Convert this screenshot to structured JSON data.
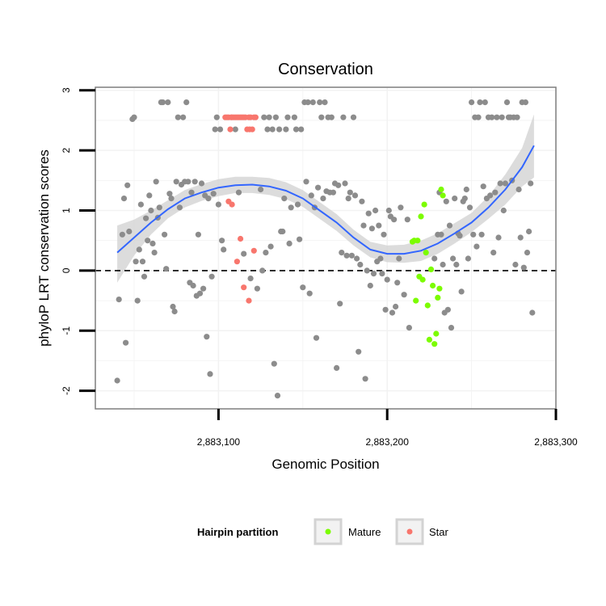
{
  "chart_data": {
    "type": "scatter",
    "title": "Conservation",
    "xlabel": "Genomic Position",
    "ylabel": "phyloP LRT conservation scores",
    "xlim": [
      2883027,
      2883300
    ],
    "ylim": [
      -2.3,
      3.05
    ],
    "x_ticks": [
      2883100,
      2883200,
      2883300
    ],
    "x_tick_labels": [
      "2,883,100",
      "2,883,200",
      "2,883,300"
    ],
    "y_ticks": [
      -2,
      -1,
      0,
      1,
      2,
      3
    ],
    "y_tick_labels": [
      "-2",
      "-1",
      "0",
      "1",
      "2",
      "3"
    ],
    "reference_line": {
      "y": 0,
      "style": "dashed"
    },
    "legend": {
      "title": "Hairpin partition",
      "position": "bottom",
      "entries": [
        {
          "label": "Mature",
          "color": "#7CFC00"
        },
        {
          "label": "Star",
          "color": "#F8766D"
        }
      ]
    },
    "colors": {
      "other": "#8C8C8C",
      "mature": "#7CFC00",
      "star": "#F8766D",
      "smooth_line": "#3366FF",
      "ribbon": "#D3D3D3",
      "grid": "#F2F2F2",
      "panel_border": "#7F7F7F"
    },
    "series": [
      {
        "name": "Other",
        "points": [
          [
            2883040,
            -1.83
          ],
          [
            2883041,
            -0.48
          ],
          [
            2883043,
            0.6
          ],
          [
            2883044,
            1.2
          ],
          [
            2883045,
            -1.2
          ],
          [
            2883046,
            1.42
          ],
          [
            2883047,
            0.65
          ],
          [
            2883049,
            2.52
          ],
          [
            2883050,
            2.55
          ],
          [
            2883051,
            0.15
          ],
          [
            2883052,
            -0.5
          ],
          [
            2883053,
            0.35
          ],
          [
            2883054,
            1.1
          ],
          [
            2883055,
            0.15
          ],
          [
            2883056,
            -0.1
          ],
          [
            2883057,
            0.87
          ],
          [
            2883058,
            0.5
          ],
          [
            2883059,
            1.25
          ],
          [
            2883060,
            1.0
          ],
          [
            2883061,
            0.45
          ],
          [
            2883062,
            0.3
          ],
          [
            2883063,
            1.48
          ],
          [
            2883064,
            0.88
          ],
          [
            2883065,
            1.05
          ],
          [
            2883066,
            2.8
          ],
          [
            2883067,
            2.8
          ],
          [
            2883068,
            0.6
          ],
          [
            2883069,
            0.03
          ],
          [
            2883070,
            2.8
          ],
          [
            2883071,
            1.28
          ],
          [
            2883072,
            1.2
          ],
          [
            2883073,
            -0.6
          ],
          [
            2883074,
            -0.68
          ],
          [
            2883075,
            1.48
          ],
          [
            2883076,
            2.55
          ],
          [
            2883077,
            1.05
          ],
          [
            2883078,
            1.43
          ],
          [
            2883079,
            2.55
          ],
          [
            2883080,
            1.48
          ],
          [
            2883081,
            2.8
          ],
          [
            2883082,
            1.48
          ],
          [
            2883083,
            -0.2
          ],
          [
            2883084,
            1.3
          ],
          [
            2883085,
            -0.25
          ],
          [
            2883086,
            1.48
          ],
          [
            2883087,
            -0.42
          ],
          [
            2883088,
            0.6
          ],
          [
            2883089,
            -0.38
          ],
          [
            2883090,
            1.45
          ],
          [
            2883091,
            -0.3
          ],
          [
            2883092,
            1.25
          ],
          [
            2883093,
            -1.1
          ],
          [
            2883094,
            1.2
          ],
          [
            2883095,
            -1.72
          ],
          [
            2883096,
            -0.1
          ],
          [
            2883097,
            1.28
          ],
          [
            2883098,
            2.35
          ],
          [
            2883099,
            2.55
          ],
          [
            2883100,
            1.1
          ],
          [
            2883101,
            2.35
          ],
          [
            2883102,
            0.5
          ],
          [
            2883103,
            0.35
          ],
          [
            2883110,
            2.35
          ],
          [
            2883112,
            1.3
          ],
          [
            2883115,
            0.28
          ],
          [
            2883119,
            -0.13
          ],
          [
            2883123,
            -0.3
          ],
          [
            2883125,
            1.35
          ],
          [
            2883126,
            0.0
          ],
          [
            2883127,
            2.55
          ],
          [
            2883128,
            0.3
          ],
          [
            2883129,
            2.35
          ],
          [
            2883130,
            2.55
          ],
          [
            2883131,
            0.4
          ],
          [
            2883132,
            2.35
          ],
          [
            2883133,
            -1.55
          ],
          [
            2883134,
            2.55
          ],
          [
            2883135,
            -2.08
          ],
          [
            2883136,
            2.35
          ],
          [
            2883137,
            0.65
          ],
          [
            2883138,
            0.65
          ],
          [
            2883139,
            1.2
          ],
          [
            2883140,
            2.35
          ],
          [
            2883141,
            2.55
          ],
          [
            2883142,
            0.45
          ],
          [
            2883143,
            1.05
          ],
          [
            2883145,
            2.55
          ],
          [
            2883146,
            2.35
          ],
          [
            2883147,
            1.1
          ],
          [
            2883148,
            0.52
          ],
          [
            2883149,
            2.35
          ],
          [
            2883150,
            -0.28
          ],
          [
            2883151,
            2.8
          ],
          [
            2883152,
            1.48
          ],
          [
            2883153,
            2.8
          ],
          [
            2883154,
            -0.38
          ],
          [
            2883155,
            1.25
          ],
          [
            2883156,
            2.8
          ],
          [
            2883157,
            1.05
          ],
          [
            2883158,
            -1.12
          ],
          [
            2883159,
            1.38
          ],
          [
            2883160,
            2.8
          ],
          [
            2883161,
            2.55
          ],
          [
            2883162,
            1.2
          ],
          [
            2883163,
            2.8
          ],
          [
            2883164,
            1.32
          ],
          [
            2883165,
            2.55
          ],
          [
            2883166,
            1.3
          ],
          [
            2883167,
            2.55
          ],
          [
            2883168,
            1.3
          ],
          [
            2883169,
            1.45
          ],
          [
            2883170,
            -1.62
          ],
          [
            2883171,
            1.42
          ],
          [
            2883172,
            -0.55
          ],
          [
            2883173,
            0.3
          ],
          [
            2883174,
            2.55
          ],
          [
            2883175,
            1.45
          ],
          [
            2883176,
            0.25
          ],
          [
            2883177,
            1.2
          ],
          [
            2883178,
            1.3
          ],
          [
            2883179,
            0.25
          ],
          [
            2883180,
            2.55
          ],
          [
            2883181,
            1.25
          ],
          [
            2883182,
            0.2
          ],
          [
            2883183,
            -1.35
          ],
          [
            2883184,
            0.1
          ],
          [
            2883185,
            1.15
          ],
          [
            2883186,
            0.75
          ],
          [
            2883187,
            -1.8
          ],
          [
            2883188,
            0.0
          ],
          [
            2883189,
            0.95
          ],
          [
            2883190,
            -0.25
          ],
          [
            2883191,
            0.7
          ],
          [
            2883192,
            -0.05
          ],
          [
            2883193,
            1.0
          ],
          [
            2883194,
            0.15
          ],
          [
            2883195,
            0.75
          ],
          [
            2883196,
            0.2
          ],
          [
            2883197,
            -0.05
          ],
          [
            2883198,
            0.6
          ],
          [
            2883199,
            -0.65
          ],
          [
            2883200,
            -0.15
          ],
          [
            2883201,
            1.0
          ],
          [
            2883202,
            0.9
          ],
          [
            2883203,
            -0.7
          ],
          [
            2883204,
            0.85
          ],
          [
            2883205,
            -0.6
          ],
          [
            2883206,
            -0.2
          ],
          [
            2883207,
            0.2
          ],
          [
            2883208,
            1.05
          ],
          [
            2883210,
            -0.4
          ],
          [
            2883212,
            0.85
          ],
          [
            2883213,
            -0.95
          ],
          [
            2883228,
            0.2
          ],
          [
            2883230,
            0.6
          ],
          [
            2883231,
            1.3
          ],
          [
            2883232,
            0.6
          ],
          [
            2883233,
            0.1
          ],
          [
            2883234,
            -0.7
          ],
          [
            2883235,
            1.15
          ],
          [
            2883236,
            -0.65
          ],
          [
            2883237,
            0.75
          ],
          [
            2883238,
            -0.95
          ],
          [
            2883239,
            0.2
          ],
          [
            2883240,
            1.2
          ],
          [
            2883241,
            0.1
          ],
          [
            2883242,
            0.62
          ],
          [
            2883243,
            0.58
          ],
          [
            2883244,
            -0.35
          ],
          [
            2883245,
            1.15
          ],
          [
            2883246,
            1.2
          ],
          [
            2883247,
            1.35
          ],
          [
            2883248,
            0.2
          ],
          [
            2883249,
            1.05
          ],
          [
            2883250,
            2.8
          ],
          [
            2883251,
            0.6
          ],
          [
            2883252,
            2.55
          ],
          [
            2883253,
            0.4
          ],
          [
            2883254,
            2.55
          ],
          [
            2883255,
            2.8
          ],
          [
            2883256,
            0.6
          ],
          [
            2883257,
            1.4
          ],
          [
            2883258,
            2.8
          ],
          [
            2883259,
            1.2
          ],
          [
            2883260,
            2.55
          ],
          [
            2883261,
            1.25
          ],
          [
            2883262,
            2.55
          ],
          [
            2883263,
            0.3
          ],
          [
            2883264,
            1.3
          ],
          [
            2883265,
            2.55
          ],
          [
            2883266,
            0.55
          ],
          [
            2883267,
            1.45
          ],
          [
            2883268,
            2.55
          ],
          [
            2883269,
            1.0
          ],
          [
            2883270,
            1.45
          ],
          [
            2883271,
            2.8
          ],
          [
            2883272,
            2.55
          ],
          [
            2883273,
            2.55
          ],
          [
            2883274,
            1.5
          ],
          [
            2883275,
            2.55
          ],
          [
            2883276,
            0.1
          ],
          [
            2883277,
            2.55
          ],
          [
            2883278,
            1.35
          ],
          [
            2883279,
            0.55
          ],
          [
            2883280,
            2.8
          ],
          [
            2883281,
            0.05
          ],
          [
            2883282,
            2.8
          ],
          [
            2883283,
            0.3
          ],
          [
            2883284,
            0.65
          ],
          [
            2883285,
            1.45
          ],
          [
            2883286,
            -0.7
          ]
        ]
      },
      {
        "name": "Star",
        "points": [
          [
            2883104,
            2.55
          ],
          [
            2883105,
            2.55
          ],
          [
            2883106,
            2.55
          ],
          [
            2883107,
            2.35
          ],
          [
            2883107.5,
            2.55
          ],
          [
            2883108,
            2.55
          ],
          [
            2883109,
            2.55
          ],
          [
            2883110,
            2.55
          ],
          [
            2883111,
            2.55
          ],
          [
            2883112,
            2.55
          ],
          [
            2883113,
            2.55
          ],
          [
            2883114,
            2.55
          ],
          [
            2883115,
            2.55
          ],
          [
            2883116,
            2.55
          ],
          [
            2883117,
            2.35
          ],
          [
            2883118,
            2.55
          ],
          [
            2883118.5,
            2.35
          ],
          [
            2883119,
            2.55
          ],
          [
            2883120,
            2.35
          ],
          [
            2883121,
            2.55
          ],
          [
            2883122,
            2.55
          ],
          [
            2883106,
            1.15
          ],
          [
            2883108,
            1.1
          ],
          [
            2883111,
            0.15
          ],
          [
            2883113,
            0.53
          ],
          [
            2883115,
            -0.28
          ],
          [
            2883118,
            -0.5
          ],
          [
            2883121,
            0.33
          ]
        ]
      },
      {
        "name": "Mature",
        "points": [
          [
            2883215,
            0.48
          ],
          [
            2883216,
            0.5
          ],
          [
            2883217,
            -0.5
          ],
          [
            2883218,
            0.5
          ],
          [
            2883219,
            -0.1
          ],
          [
            2883220,
            0.9
          ],
          [
            2883221,
            -0.15
          ],
          [
            2883222,
            1.1
          ],
          [
            2883223,
            0.3
          ],
          [
            2883224,
            -0.58
          ],
          [
            2883225,
            -1.15
          ],
          [
            2883226,
            0.02
          ],
          [
            2883227,
            -0.25
          ],
          [
            2883228,
            -1.22
          ],
          [
            2883229,
            -1.05
          ],
          [
            2883230,
            -0.45
          ],
          [
            2883231,
            -0.3
          ],
          [
            2883232,
            1.35
          ],
          [
            2883233,
            1.25
          ]
        ]
      }
    ],
    "smooth": {
      "x": [
        2883040,
        2883050,
        2883060,
        2883070,
        2883080,
        2883090,
        2883100,
        2883110,
        2883120,
        2883130,
        2883140,
        2883150,
        2883160,
        2883170,
        2883180,
        2883190,
        2883200,
        2883210,
        2883220,
        2883230,
        2883240,
        2883250,
        2883260,
        2883270,
        2883280,
        2883287
      ],
      "y": [
        0.3,
        0.55,
        0.8,
        1.02,
        1.2,
        1.3,
        1.38,
        1.42,
        1.43,
        1.4,
        1.33,
        1.2,
        1.0,
        0.8,
        0.55,
        0.35,
        0.28,
        0.28,
        0.33,
        0.45,
        0.62,
        0.8,
        1.05,
        1.35,
        1.72,
        2.08
      ],
      "lower": [
        -0.2,
        0.25,
        0.6,
        0.87,
        1.05,
        1.16,
        1.24,
        1.29,
        1.29,
        1.26,
        1.19,
        1.06,
        0.86,
        0.66,
        0.42,
        0.22,
        0.14,
        0.13,
        0.16,
        0.28,
        0.45,
        0.64,
        0.86,
        1.1,
        1.4,
        1.55
      ],
      "upper": [
        0.75,
        0.85,
        1.0,
        1.17,
        1.34,
        1.44,
        1.52,
        1.56,
        1.56,
        1.54,
        1.47,
        1.34,
        1.14,
        0.94,
        0.68,
        0.48,
        0.42,
        0.43,
        0.5,
        0.62,
        0.79,
        0.96,
        1.24,
        1.6,
        2.04,
        2.6
      ]
    }
  }
}
